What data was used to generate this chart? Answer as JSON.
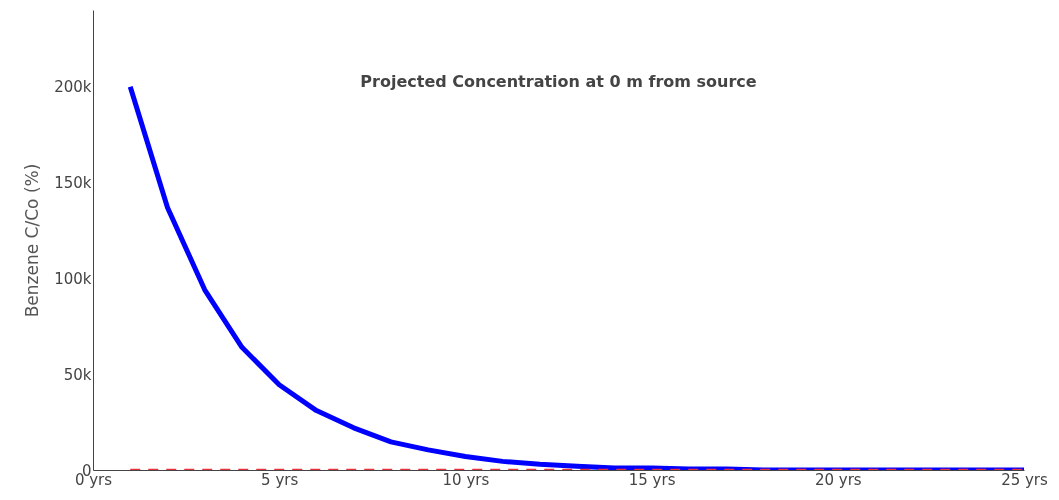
{
  "chart_data": {
    "type": "line",
    "title": "Projected Concentration at 0 m  from source",
    "ylabel": "Benzene C/Co (%)",
    "x": [
      1,
      2,
      3,
      4,
      5,
      6,
      7,
      8,
      9,
      10,
      11,
      12,
      13,
      14,
      15,
      16,
      17,
      18,
      19,
      20,
      21,
      22,
      23,
      24,
      25
    ],
    "series": [
      {
        "color": "#0000ff",
        "line_style": "solid",
        "values": [
          200000,
          137000,
          94000,
          64000,
          44500,
          31000,
          22000,
          14700,
          10500,
          7000,
          4500,
          3000,
          2000,
          1000,
          1000,
          500,
          500,
          0,
          0,
          0,
          0,
          0,
          0,
          0,
          0
        ]
      },
      {
        "color": "#e8323c",
        "line_style": "dashed",
        "values": [
          0,
          0,
          0,
          0,
          0,
          0,
          0,
          0,
          0,
          0,
          0,
          0,
          0,
          0,
          0,
          0,
          0,
          0,
          0,
          0,
          0,
          0,
          0,
          0,
          0
        ]
      }
    ],
    "xlim": [
      0,
      25
    ],
    "xticks": [
      {
        "value": 0,
        "label": "0 yrs"
      },
      {
        "value": 5,
        "label": "5 yrs"
      },
      {
        "value": 10,
        "label": "10 yrs"
      },
      {
        "value": 15,
        "label": "15 yrs"
      },
      {
        "value": 20,
        "label": "20 yrs"
      },
      {
        "value": 25,
        "label": "25 yrs"
      }
    ],
    "ylim": [
      0,
      240000
    ],
    "yticks": [
      0,
      {
        "value": 50000,
        "label": "50k"
      },
      {
        "value": 100000,
        "label": "100k"
      },
      {
        "value": 150000,
        "label": "150k"
      },
      {
        "value": 200000,
        "label": "200k"
      }
    ],
    "grid": false
  }
}
